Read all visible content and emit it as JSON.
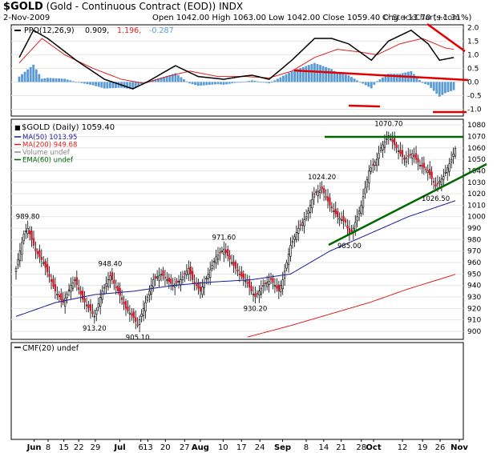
{
  "header": {
    "symbol": "$GOLD",
    "description": "(Gold - Continuous Contract (EOD))",
    "exchange": "INDX",
    "date": "2-Nov-2009",
    "quote": "Open 1042.00  High 1063.00  Low 1042.00  Close 1059.40  Chg +13.70 (+1.31%)",
    "watermark": "© StockCharts.com"
  },
  "colors": {
    "ppo_line": "#000000",
    "ppo_signal": "#e02020",
    "ppo_histogram": "#5b9bd5",
    "candle_up": "#ffffff",
    "candle_down": "#d21a2a",
    "ma50": "#1a1a99",
    "ma200": "#e02020",
    "ema60": "#006600",
    "annotation_red": "#e00000",
    "annotation_green": "#006600"
  },
  "chart_data": [
    {
      "type": "line",
      "panel": "PPO",
      "legend": [
        {
          "text": "PPO(12,26,9)",
          "color": "#000000"
        },
        {
          "text": "0.909,",
          "color": "#000000"
        },
        {
          "text": "1.196,",
          "color": "#e02020"
        },
        {
          "text": "-0.287",
          "color": "#5b9bd5"
        }
      ],
      "yticks": [
        "2.0",
        "1.5",
        "1.0",
        "0.5",
        "0.0",
        "-0.5",
        "-1.0"
      ],
      "ylim": [
        -1.25,
        2.1
      ],
      "ppo_anchors": [
        [
          0,
          0.9
        ],
        [
          5,
          1.9
        ],
        [
          10,
          1.6
        ],
        [
          20,
          0.8
        ],
        [
          30,
          0.1
        ],
        [
          40,
          -0.25
        ],
        [
          45,
          0.0
        ],
        [
          55,
          0.6
        ],
        [
          63,
          0.2
        ],
        [
          72,
          0.1
        ],
        [
          78,
          0.2
        ],
        [
          82,
          0.25
        ],
        [
          88,
          0.1
        ],
        [
          96,
          0.8
        ],
        [
          104,
          1.6
        ],
        [
          110,
          1.6
        ],
        [
          116,
          1.4
        ],
        [
          124,
          0.8
        ],
        [
          130,
          1.5
        ],
        [
          138,
          1.9
        ],
        [
          144,
          1.4
        ],
        [
          148,
          0.8
        ],
        [
          153,
          0.9
        ]
      ],
      "signal_anchors": [
        [
          0,
          0.7
        ],
        [
          8,
          1.6
        ],
        [
          16,
          1.0
        ],
        [
          26,
          0.5
        ],
        [
          36,
          0.1
        ],
        [
          44,
          -0.05
        ],
        [
          52,
          0.2
        ],
        [
          60,
          0.4
        ],
        [
          70,
          0.2
        ],
        [
          80,
          0.2
        ],
        [
          88,
          0.15
        ],
        [
          96,
          0.4
        ],
        [
          104,
          0.9
        ],
        [
          112,
          1.2
        ],
        [
          120,
          1.1
        ],
        [
          126,
          1.0
        ],
        [
          134,
          1.4
        ],
        [
          142,
          1.6
        ],
        [
          150,
          1.25
        ],
        [
          153,
          1.2
        ]
      ],
      "histogram": "ppo minus signal"
    },
    {
      "type": "candlestick",
      "panel": "Price",
      "title": "$GOLD (Daily) 1059.40",
      "legend": [
        {
          "text": "MA(50) 1013.95",
          "color": "#1a1a99"
        },
        {
          "text": "MA(200) 949.68",
          "color": "#e02020"
        },
        {
          "text": "Volume undef",
          "color": "#888888"
        },
        {
          "text": "EMA(60) undef",
          "color": "#006600"
        }
      ],
      "yticks": [
        "1080",
        "1070",
        "1060",
        "1050",
        "1040",
        "1030",
        "1020",
        "1010",
        "1000",
        "990",
        "980",
        "970",
        "960",
        "950",
        "940",
        "930",
        "920",
        "910",
        "900"
      ],
      "ylim": [
        893,
        1085
      ],
      "close_anchors": [
        [
          0,
          955
        ],
        [
          4,
          985
        ],
        [
          6,
          989.8
        ],
        [
          10,
          970
        ],
        [
          14,
          960
        ],
        [
          20,
          935
        ],
        [
          24,
          925
        ],
        [
          28,
          940
        ],
        [
          30,
          945
        ],
        [
          34,
          928
        ],
        [
          38,
          918
        ],
        [
          40,
          913.2
        ],
        [
          44,
          935
        ],
        [
          48,
          948.4
        ],
        [
          52,
          935
        ],
        [
          56,
          920
        ],
        [
          60,
          912
        ],
        [
          62,
          905.1
        ],
        [
          66,
          925
        ],
        [
          70,
          945
        ],
        [
          74,
          950
        ],
        [
          80,
          940
        ],
        [
          84,
          945
        ],
        [
          88,
          955
        ],
        [
          90,
          945
        ],
        [
          94,
          935
        ],
        [
          98,
          950
        ],
        [
          102,
          965
        ],
        [
          106,
          971.6
        ],
        [
          110,
          960
        ],
        [
          114,
          950
        ],
        [
          118,
          942
        ],
        [
          120,
          935
        ],
        [
          122,
          930.2
        ],
        [
          126,
          940
        ],
        [
          130,
          945
        ],
        [
          134,
          935
        ],
        [
          136,
          945
        ],
        [
          140,
          975
        ],
        [
          144,
          990
        ],
        [
          148,
          1000
        ],
        [
          152,
          1020
        ],
        [
          156,
          1024.2
        ],
        [
          160,
          1010
        ],
        [
          164,
          1000
        ],
        [
          168,
          995
        ],
        [
          170,
          985
        ],
        [
          172,
          990
        ],
        [
          176,
          1010
        ],
        [
          180,
          1040
        ],
        [
          184,
          1050
        ],
        [
          186,
          1060
        ],
        [
          190,
          1070.7
        ],
        [
          194,
          1060
        ],
        [
          198,
          1050
        ],
        [
          202,
          1055
        ],
        [
          206,
          1045
        ],
        [
          210,
          1040
        ],
        [
          214,
          1026.5
        ],
        [
          218,
          1035
        ],
        [
          222,
          1050
        ],
        [
          224,
          1059.4
        ]
      ],
      "ma50_anchors": [
        [
          0,
          913
        ],
        [
          20,
          925
        ],
        [
          40,
          932
        ],
        [
          60,
          935
        ],
        [
          80,
          940
        ],
        [
          100,
          943
        ],
        [
          120,
          945
        ],
        [
          140,
          950
        ],
        [
          160,
          970
        ],
        [
          180,
          985
        ],
        [
          200,
          1000
        ],
        [
          224,
          1013.95
        ]
      ],
      "ma200_anchors": [
        [
          118,
          895
        ],
        [
          140,
          905
        ],
        [
          160,
          915
        ],
        [
          180,
          925
        ],
        [
          200,
          937
        ],
        [
          224,
          949.68
        ]
      ],
      "price_labels": [
        {
          "i": 6,
          "v": 989.8,
          "text": "989.80",
          "pos": "above"
        },
        {
          "i": 48,
          "v": 948.4,
          "text": "948.40",
          "pos": "above"
        },
        {
          "i": 40,
          "v": 913.2,
          "text": "913.20",
          "pos": "below"
        },
        {
          "i": 62,
          "v": 905.1,
          "text": "905.10",
          "pos": "below"
        },
        {
          "i": 106,
          "v": 971.6,
          "text": "971.60",
          "pos": "above"
        },
        {
          "i": 122,
          "v": 930.2,
          "text": "930.20",
          "pos": "below"
        },
        {
          "i": 156,
          "v": 1024.2,
          "text": "1024.20",
          "pos": "above"
        },
        {
          "i": 170,
          "v": 985.0,
          "text": "985.00",
          "pos": "below"
        },
        {
          "i": 190,
          "v": 1070.7,
          "text": "1070.70",
          "pos": "above"
        },
        {
          "i": 214,
          "v": 1026.5,
          "text": "1026.50",
          "pos": "below"
        }
      ]
    },
    {
      "type": "line",
      "panel": "CMF",
      "legend": [
        {
          "text": "CMF(20) undef",
          "color": "#000000"
        }
      ],
      "values": []
    }
  ],
  "xaxis": {
    "labels": [
      {
        "i": 6,
        "text": "Jun",
        "bold": true
      },
      {
        "i": 22,
        "text": "8",
        "bold": false
      },
      {
        "i": 40,
        "text": "15",
        "bold": false
      },
      {
        "i": 57,
        "text": "22",
        "bold": false
      },
      {
        "i": 76,
        "text": "29",
        "bold": false
      },
      {
        "i": 104,
        "text": "Jul",
        "bold": true
      },
      {
        "i": 128,
        "text": "6",
        "bold": false
      },
      {
        "i": 136,
        "text": "13",
        "bold": false
      },
      {
        "i": 156,
        "text": "20",
        "bold": false
      },
      {
        "i": 178,
        "text": "27",
        "bold": false
      },
      {
        "i": 196,
        "text": "Aug",
        "bold": true
      },
      {
        "i": 222,
        "text": "10",
        "bold": false
      },
      {
        "i": 243,
        "text": "17",
        "bold": false
      },
      {
        "i": 264,
        "text": "24",
        "bold": false
      },
      {
        "i": 290,
        "text": "Sep",
        "bold": true
      },
      {
        "i": 317,
        "text": "8",
        "bold": false
      },
      {
        "i": 337,
        "text": "14",
        "bold": false
      },
      {
        "i": 357,
        "text": "21",
        "bold": false
      },
      {
        "i": 380,
        "text": "28",
        "bold": false
      },
      {
        "i": 394,
        "text": "Oct",
        "bold": true
      },
      {
        "i": 427,
        "text": "12",
        "bold": false
      },
      {
        "i": 450,
        "text": "19",
        "bold": false
      },
      {
        "i": 470,
        "text": "26",
        "bold": false
      },
      {
        "i": 492,
        "text": "Nov",
        "bold": true
      }
    ]
  },
  "annotations": {
    "ppo_resistance_line": "red",
    "ppo_short_lines": "red",
    "price_trendlines": "green"
  }
}
